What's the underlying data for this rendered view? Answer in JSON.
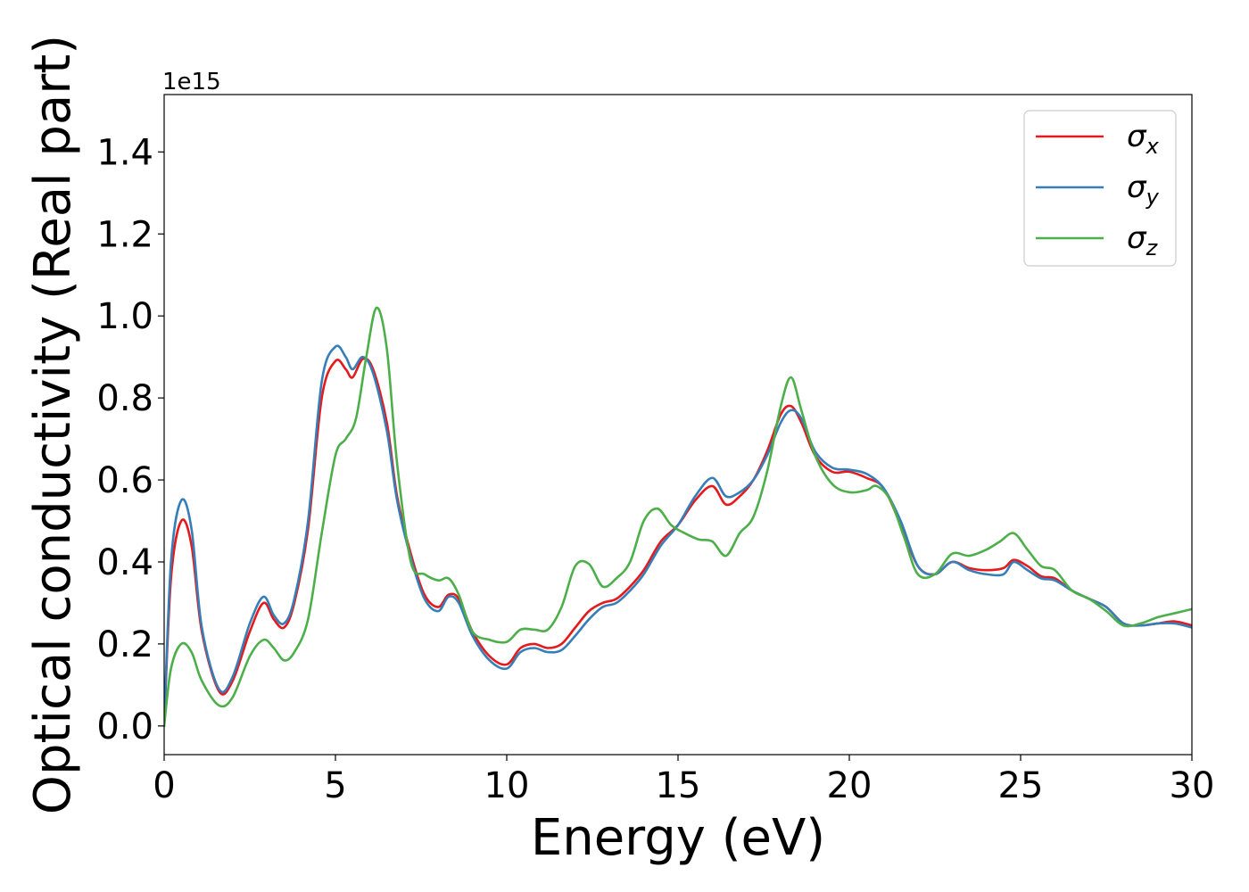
{
  "chart_data": {
    "type": "line",
    "xlabel": "Energy (eV)",
    "ylabel": "Optical conductivity (Real part)",
    "offset_text": "1e15",
    "xlim": [
      0,
      30
    ],
    "ylim": [
      -0.07,
      1.54
    ],
    "xticks": [
      0,
      5,
      10,
      15,
      20,
      25,
      30
    ],
    "xtick_labels": [
      "0",
      "5",
      "10",
      "15",
      "20",
      "25",
      "30"
    ],
    "yticks": [
      0.0,
      0.2,
      0.4,
      0.6,
      0.8,
      1.0,
      1.2,
      1.4
    ],
    "ytick_labels": [
      "0.0",
      "0.2",
      "0.4",
      "0.6",
      "0.8",
      "1.0",
      "1.2",
      "1.4"
    ],
    "grid": false,
    "legend_position": "top-right",
    "series": [
      {
        "name": "σx",
        "base": "σ",
        "sub": "x",
        "color": "#e41a1c",
        "x": [
          0,
          0.2,
          0.5,
          0.8,
          1.1,
          1.6,
          2.0,
          2.5,
          2.9,
          3.2,
          3.5,
          3.8,
          4.2,
          4.6,
          5.0,
          5.3,
          5.5,
          5.8,
          6.1,
          6.5,
          6.8,
          7.2,
          7.6,
          8.0,
          8.3,
          8.6,
          9.0,
          9.5,
          10.0,
          10.4,
          10.8,
          11.2,
          11.6,
          12.0,
          12.4,
          12.8,
          13.2,
          13.6,
          14.0,
          14.5,
          15.0,
          15.5,
          16.0,
          16.4,
          16.8,
          17.2,
          17.6,
          18.0,
          18.3,
          18.6,
          19.0,
          19.5,
          20.0,
          20.5,
          21.0,
          21.5,
          22.0,
          22.5,
          23.0,
          23.5,
          24.0,
          24.5,
          24.8,
          25.2,
          25.6,
          26.0,
          26.5,
          27.0,
          27.5,
          28.0,
          28.5,
          29.0,
          29.5,
          30.0
        ],
        "y": [
          0.0,
          0.36,
          0.5,
          0.44,
          0.23,
          0.085,
          0.11,
          0.23,
          0.3,
          0.26,
          0.24,
          0.3,
          0.48,
          0.8,
          0.89,
          0.87,
          0.85,
          0.895,
          0.87,
          0.74,
          0.56,
          0.42,
          0.32,
          0.29,
          0.32,
          0.31,
          0.23,
          0.17,
          0.15,
          0.19,
          0.2,
          0.19,
          0.2,
          0.24,
          0.28,
          0.3,
          0.31,
          0.34,
          0.38,
          0.45,
          0.49,
          0.55,
          0.585,
          0.54,
          0.56,
          0.6,
          0.67,
          0.76,
          0.78,
          0.74,
          0.66,
          0.62,
          0.62,
          0.605,
          0.58,
          0.49,
          0.39,
          0.37,
          0.4,
          0.385,
          0.38,
          0.385,
          0.405,
          0.39,
          0.365,
          0.36,
          0.33,
          0.31,
          0.29,
          0.25,
          0.245,
          0.25,
          0.255,
          0.245
        ]
      },
      {
        "name": "σy",
        "base": "σ",
        "sub": "y",
        "color": "#377eb8",
        "x": [
          0,
          0.2,
          0.5,
          0.8,
          1.1,
          1.6,
          2.0,
          2.5,
          2.9,
          3.2,
          3.5,
          3.8,
          4.2,
          4.6,
          5.0,
          5.3,
          5.5,
          5.8,
          6.1,
          6.5,
          6.8,
          7.2,
          7.6,
          8.0,
          8.3,
          8.6,
          9.0,
          9.5,
          10.0,
          10.4,
          10.8,
          11.2,
          11.6,
          12.0,
          12.4,
          12.8,
          13.2,
          13.6,
          14.0,
          14.5,
          15.0,
          15.5,
          16.0,
          16.4,
          16.8,
          17.2,
          17.6,
          18.0,
          18.3,
          18.6,
          19.0,
          19.5,
          20.0,
          20.5,
          21.0,
          21.5,
          22.0,
          22.5,
          23.0,
          23.5,
          24.0,
          24.5,
          24.8,
          25.2,
          25.6,
          26.0,
          26.5,
          27.0,
          27.5,
          28.0,
          28.5,
          29.0,
          29.5,
          30.0
        ],
        "y": [
          0.0,
          0.4,
          0.55,
          0.48,
          0.24,
          0.09,
          0.12,
          0.25,
          0.315,
          0.27,
          0.25,
          0.31,
          0.5,
          0.84,
          0.925,
          0.9,
          0.87,
          0.9,
          0.86,
          0.72,
          0.55,
          0.41,
          0.31,
          0.28,
          0.315,
          0.3,
          0.22,
          0.16,
          0.14,
          0.18,
          0.19,
          0.18,
          0.185,
          0.22,
          0.26,
          0.29,
          0.3,
          0.33,
          0.37,
          0.44,
          0.49,
          0.56,
          0.605,
          0.56,
          0.57,
          0.6,
          0.66,
          0.74,
          0.77,
          0.75,
          0.67,
          0.63,
          0.625,
          0.615,
          0.58,
          0.5,
          0.39,
          0.37,
          0.4,
          0.38,
          0.37,
          0.37,
          0.4,
          0.38,
          0.36,
          0.355,
          0.33,
          0.31,
          0.29,
          0.25,
          0.245,
          0.25,
          0.25,
          0.24
        ]
      },
      {
        "name": "σz",
        "base": "σ",
        "sub": "z",
        "color": "#4daf4a",
        "x": [
          0,
          0.2,
          0.5,
          0.8,
          1.1,
          1.6,
          2.0,
          2.5,
          2.9,
          3.2,
          3.5,
          3.8,
          4.2,
          4.6,
          5.0,
          5.3,
          5.6,
          5.9,
          6.2,
          6.5,
          6.8,
          7.2,
          7.6,
          8.0,
          8.3,
          8.6,
          9.0,
          9.5,
          10.0,
          10.4,
          10.8,
          11.2,
          11.6,
          12.0,
          12.4,
          12.8,
          13.2,
          13.6,
          14.0,
          14.4,
          14.8,
          15.2,
          15.6,
          16.0,
          16.4,
          16.8,
          17.2,
          17.6,
          18.0,
          18.3,
          18.6,
          19.0,
          19.5,
          20.0,
          20.5,
          20.8,
          21.2,
          21.6,
          22.0,
          22.5,
          23.0,
          23.5,
          24.0,
          24.4,
          24.8,
          25.2,
          25.6,
          26.0,
          26.5,
          27.0,
          27.5,
          28.0,
          28.5,
          29.0,
          29.5,
          30.0
        ],
        "y": [
          0.0,
          0.14,
          0.2,
          0.18,
          0.11,
          0.05,
          0.07,
          0.17,
          0.21,
          0.19,
          0.16,
          0.18,
          0.26,
          0.47,
          0.66,
          0.7,
          0.75,
          0.9,
          1.02,
          0.92,
          0.64,
          0.4,
          0.37,
          0.355,
          0.36,
          0.32,
          0.23,
          0.21,
          0.205,
          0.235,
          0.235,
          0.235,
          0.29,
          0.39,
          0.395,
          0.34,
          0.36,
          0.4,
          0.5,
          0.53,
          0.49,
          0.47,
          0.455,
          0.45,
          0.415,
          0.47,
          0.51,
          0.62,
          0.78,
          0.85,
          0.77,
          0.66,
          0.59,
          0.57,
          0.575,
          0.585,
          0.55,
          0.46,
          0.37,
          0.37,
          0.42,
          0.415,
          0.43,
          0.45,
          0.47,
          0.43,
          0.39,
          0.38,
          0.33,
          0.31,
          0.28,
          0.245,
          0.25,
          0.265,
          0.275,
          0.285
        ]
      }
    ]
  }
}
